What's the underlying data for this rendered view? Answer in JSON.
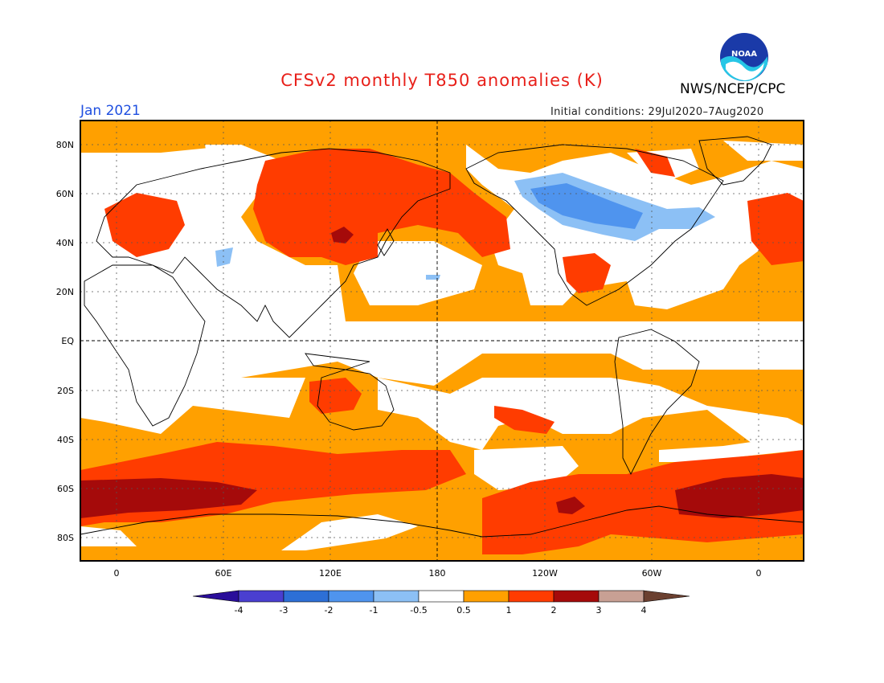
{
  "title": "CFSv2 monthly T850 anomalies (K)",
  "agency": "NWS/NCEP/CPC",
  "logo_text": "NOAA",
  "month": "Jan 2021",
  "initial_conditions": "Initial conditions: 29Jul2020–7Aug2020",
  "colors": {
    "title": "#e8201a",
    "month": "#1f4fe0",
    "bin_m4": "#2a0e9a",
    "bin_m3": "#4a3fd0",
    "bin_m2": "#2d6fd6",
    "bin_m1": "#4f94ee",
    "bin_m05": "#8cc0f5",
    "bin_neutral": "#ffffff",
    "bin_05": "#ffa000",
    "bin_1": "#ff3c00",
    "bin_2": "#a50a0a",
    "bin_3": "#c8a094",
    "bin_4": "#6b4030"
  },
  "axes": {
    "lat_labels": [
      "80N",
      "60N",
      "40N",
      "20N",
      "EQ",
      "20S",
      "40S",
      "60S",
      "80S"
    ],
    "lon_labels": [
      "0",
      "60E",
      "120E",
      "180",
      "120W",
      "60W",
      "0"
    ]
  },
  "colorbar": {
    "labels": [
      "-4",
      "-3",
      "-2",
      "-1",
      "-0.5",
      "0.5",
      "1",
      "2",
      "3",
      "4"
    ]
  }
}
